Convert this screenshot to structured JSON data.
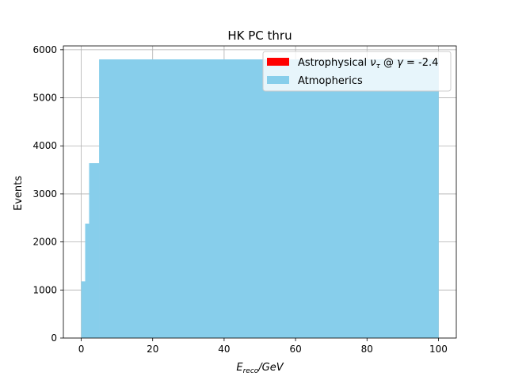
{
  "chart_data": {
    "type": "histogram",
    "title": "HK PC thru",
    "xlabel": {
      "base": "E",
      "sub": "reco",
      "rest": "/GeV"
    },
    "ylabel": "Events",
    "xlim": [
      -5,
      105
    ],
    "ylim": [
      0,
      6080
    ],
    "xticks": [
      0,
      20,
      40,
      60,
      80,
      100
    ],
    "yticks": [
      0,
      1000,
      2000,
      3000,
      4000,
      5000,
      6000
    ],
    "grid": true,
    "legend_position": "top-right",
    "legend": [
      {
        "key": "astro",
        "color": "#ff0000",
        "parts": [
          {
            "t": "Astrophysical ",
            "s": "n"
          },
          {
            "t": "ν",
            "s": "i"
          },
          {
            "t": "τ",
            "s": "sub"
          },
          {
            "t": " @ ",
            "s": "n"
          },
          {
            "t": "γ",
            "s": "i"
          },
          {
            "t": " = -2.4",
            "s": "n"
          }
        ]
      },
      {
        "key": "atmo",
        "color": "#87ceeb",
        "parts": [
          {
            "t": "Atmopherics",
            "s": "n"
          }
        ]
      }
    ],
    "series": [
      {
        "color": "#87ceeb",
        "bins": [
          {
            "x0": 0,
            "x1": 1.1,
            "y": 1180
          },
          {
            "x0": 1.1,
            "x1": 2.2,
            "y": 2380
          },
          {
            "x0": 2.2,
            "x1": 5.0,
            "y": 3640
          },
          {
            "x0": 5.0,
            "x1": 100,
            "y": 5800
          }
        ]
      }
    ]
  }
}
